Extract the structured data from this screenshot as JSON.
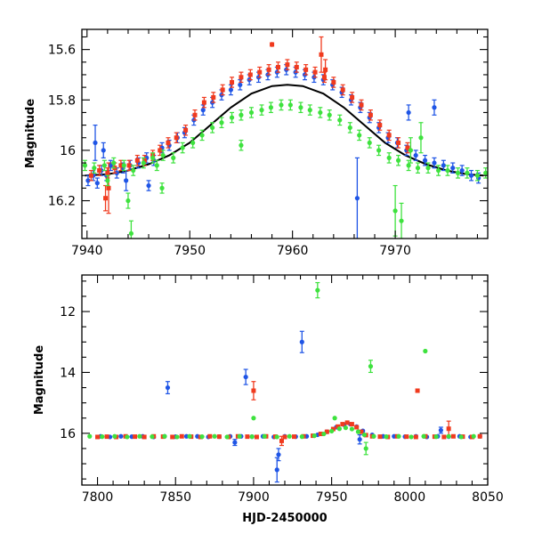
{
  "colors": {
    "blue": "#1f55e6",
    "red": "#f03a1e",
    "green": "#3ee23e",
    "model": "#000000"
  },
  "chart_data": [
    {
      "type": "scatter",
      "panel": "top",
      "xlabel": "",
      "ylabel": "Magnitude",
      "xlim": [
        7939.5,
        7979
      ],
      "ylim": [
        16.35,
        15.52
      ],
      "inverted_y": true,
      "xticks": [
        7940,
        7950,
        7960,
        7970
      ],
      "xtick_labels": [
        "7940",
        "7950",
        "7960",
        "7970"
      ],
      "yticks": [
        15.6,
        15.8,
        16,
        16.2
      ],
      "ytick_labels": [
        "15.6",
        "15.8",
        "16",
        "16.2"
      ],
      "grid": false,
      "legend": "none",
      "model_curve": {
        "color": "#000000",
        "x": [
          7939.8,
          7942,
          7944,
          7946,
          7948,
          7950,
          7952,
          7954,
          7956,
          7958,
          7959.5,
          7961,
          7963,
          7965,
          7967,
          7969,
          7971,
          7973,
          7975,
          7977,
          7978.6
        ],
        "y": [
          16.1,
          16.095,
          16.08,
          16.055,
          16.02,
          15.97,
          15.9,
          15.83,
          15.775,
          15.745,
          15.74,
          15.745,
          15.775,
          15.83,
          15.9,
          15.97,
          16.02,
          16.055,
          16.08,
          16.095,
          16.1
        ]
      },
      "series": [
        {
          "color": "#1f55e6",
          "x": [
            7940.1,
            7940.6,
            7941.0,
            7941.4,
            7941.9,
            7942.3,
            7942.9,
            7943.5,
            7944.2,
            7945.0,
            7945.8,
            7946.5,
            7947.3,
            7948.0,
            7948.8,
            7949.5,
            7950.4,
            7951.3,
            7952.2,
            7953.1,
            7954.0,
            7954.9,
            7955.8,
            7956.7,
            7957.6,
            7958.5,
            7959.4,
            7960.3,
            7961.2,
            7962.1,
            7963.0,
            7963.9,
            7964.8,
            7965.7,
            7966.6,
            7967.5,
            7968.4,
            7969.3,
            7970.2,
            7971.1,
            7972.0,
            7972.9,
            7973.8,
            7974.7,
            7975.6,
            7976.5,
            7977.4,
            7978.1,
            7940.8,
            7941.6,
            7943.8,
            7946.0,
            7966.3,
            7971.3,
            7973.8
          ],
          "y": [
            16.12,
            16.1,
            16.13,
            16.08,
            16.1,
            16.06,
            16.09,
            16.07,
            16.06,
            16.05,
            16.03,
            16.04,
            15.99,
            15.98,
            15.95,
            15.93,
            15.88,
            15.84,
            15.81,
            15.78,
            15.76,
            15.74,
            15.72,
            15.71,
            15.7,
            15.69,
            15.68,
            15.69,
            15.7,
            15.71,
            15.72,
            15.74,
            15.77,
            15.8,
            15.83,
            15.87,
            15.91,
            15.95,
            15.97,
            16.0,
            16.02,
            16.04,
            16.05,
            16.06,
            16.07,
            16.08,
            16.1,
            16.11,
            15.97,
            16.0,
            16.12,
            16.14,
            16.19,
            15.85,
            15.83
          ],
          "err": [
            0.02,
            0.02,
            0.02,
            0.02,
            0.02,
            0.02,
            0.02,
            0.02,
            0.02,
            0.02,
            0.02,
            0.02,
            0.02,
            0.02,
            0.02,
            0.02,
            0.02,
            0.02,
            0.02,
            0.02,
            0.02,
            0.02,
            0.02,
            0.02,
            0.02,
            0.02,
            0.02,
            0.02,
            0.02,
            0.02,
            0.02,
            0.02,
            0.02,
            0.02,
            0.02,
            0.02,
            0.02,
            0.02,
            0.02,
            0.02,
            0.02,
            0.02,
            0.02,
            0.02,
            0.02,
            0.02,
            0.02,
            0.02,
            0.07,
            0.03,
            0.04,
            0.02,
            0.16,
            0.03,
            0.03
          ]
        },
        {
          "color": "#f03a1e",
          "x": [
            7940.4,
            7941.2,
            7942.0,
            7942.7,
            7943.3,
            7944.1,
            7944.9,
            7945.6,
            7946.4,
            7947.1,
            7947.9,
            7948.7,
            7949.6,
            7950.5,
            7951.4,
            7952.3,
            7953.2,
            7954.1,
            7955.0,
            7955.9,
            7956.8,
            7957.7,
            7958.6,
            7959.5,
            7960.4,
            7961.3,
            7962.2,
            7963.1,
            7964.0,
            7964.9,
            7965.8,
            7966.7,
            7967.6,
            7968.5,
            7969.4,
            7970.3,
            7971.2,
            7941.8,
            7942.1,
            7958.0,
            7962.8,
            7963.2
          ],
          "y": [
            16.1,
            16.08,
            16.09,
            16.07,
            16.06,
            16.06,
            16.04,
            16.04,
            16.02,
            16.0,
            15.97,
            15.95,
            15.92,
            15.86,
            15.81,
            15.79,
            15.76,
            15.73,
            15.71,
            15.7,
            15.69,
            15.68,
            15.67,
            15.66,
            15.67,
            15.68,
            15.69,
            15.71,
            15.73,
            15.76,
            15.79,
            15.82,
            15.86,
            15.9,
            15.94,
            15.97,
            15.99,
            16.19,
            16.15,
            15.58,
            15.62,
            15.68
          ],
          "err": [
            0.02,
            0.02,
            0.02,
            0.02,
            0.02,
            0.02,
            0.02,
            0.02,
            0.02,
            0.02,
            0.02,
            0.02,
            0.02,
            0.02,
            0.02,
            0.02,
            0.02,
            0.02,
            0.02,
            0.02,
            0.02,
            0.02,
            0.02,
            0.02,
            0.02,
            0.02,
            0.02,
            0.02,
            0.02,
            0.02,
            0.02,
            0.02,
            0.02,
            0.02,
            0.02,
            0.02,
            0.02,
            0.05,
            0.1,
            0.01,
            0.07,
            0.04
          ]
        },
        {
          "color": "#3ee23e",
          "x": [
            7939.8,
            7940.7,
            7941.7,
            7942.6,
            7943.6,
            7944.5,
            7945.5,
            7946.4,
            7947.4,
            7948.4,
            7949.3,
            7950.3,
            7951.2,
            7952.2,
            7953.1,
            7954.1,
            7955.0,
            7956.0,
            7957.0,
            7957.9,
            7958.9,
            7959.8,
            7960.8,
            7961.7,
            7962.7,
            7963.6,
            7964.6,
            7965.6,
            7966.5,
            7967.5,
            7968.4,
            7969.4,
            7970.3,
            7971.3,
            7972.2,
            7973.2,
            7974.2,
            7975.1,
            7976.1,
            7977.0,
            7978.0,
            7978.8,
            7944.0,
            7944.3,
            7947.3,
            7955.0,
            7970.0,
            7970.6,
            7971.5,
            7972.5,
            7942.0,
            7946.8
          ],
          "y": [
            16.06,
            16.07,
            16.06,
            16.05,
            16.06,
            16.08,
            16.05,
            16.03,
            16.02,
            16.03,
            15.99,
            15.97,
            15.94,
            15.91,
            15.89,
            15.87,
            15.86,
            15.85,
            15.84,
            15.83,
            15.82,
            15.82,
            15.83,
            15.84,
            15.85,
            15.86,
            15.88,
            15.91,
            15.94,
            15.97,
            16.0,
            16.03,
            16.04,
            16.06,
            16.07,
            16.07,
            16.08,
            16.08,
            16.09,
            16.09,
            16.1,
            16.09,
            16.2,
            16.33,
            16.15,
            15.98,
            16.24,
            16.28,
            16.0,
            15.95,
            16.12,
            16.06
          ],
          "err": [
            0.02,
            0.02,
            0.02,
            0.02,
            0.02,
            0.02,
            0.02,
            0.02,
            0.02,
            0.02,
            0.02,
            0.02,
            0.02,
            0.02,
            0.02,
            0.02,
            0.02,
            0.02,
            0.02,
            0.02,
            0.02,
            0.02,
            0.02,
            0.02,
            0.02,
            0.02,
            0.02,
            0.02,
            0.02,
            0.02,
            0.02,
            0.02,
            0.02,
            0.02,
            0.02,
            0.02,
            0.02,
            0.02,
            0.02,
            0.02,
            0.02,
            0.02,
            0.03,
            0.05,
            0.02,
            0.02,
            0.1,
            0.07,
            0.05,
            0.06,
            0.02,
            0.02
          ]
        }
      ]
    },
    {
      "type": "scatter",
      "panel": "bottom",
      "xlabel": "HJD-2450000",
      "ylabel": "Magnitude",
      "xlim": [
        7790,
        8050
      ],
      "ylim": [
        17.7,
        10.8
      ],
      "inverted_y": true,
      "xticks": [
        7800,
        7850,
        7900,
        7950,
        8000,
        8050
      ],
      "xtick_labels": [
        "7800",
        "7850",
        "7900",
        "7950",
        "8000",
        "8050"
      ],
      "yticks": [
        12,
        14,
        16
      ],
      "ytick_labels": [
        "12",
        "14",
        "16"
      ],
      "grid": false,
      "legend": "none",
      "series": [
        {
          "color": "#1f55e6",
          "x": [
            7802,
            7808,
            7815,
            7822,
            7829,
            7836,
            7843,
            7850,
            7857,
            7864,
            7871,
            7878,
            7885,
            7892,
            7899,
            7906,
            7913,
            7920,
            7927,
            7934,
            7941,
            7947,
            7953,
            7958,
            7962,
            7966,
            7970,
            7976,
            7983,
            7990,
            7997,
            8004,
            8011,
            8018,
            8025,
            8032,
            8039,
            8045,
            7845,
            7895,
            7915,
            7916,
            7931,
            7888,
            7968,
            8020
          ],
          "y": [
            16.1,
            16.12,
            16.1,
            16.11,
            16.1,
            16.12,
            16.1,
            16.11,
            16.1,
            16.1,
            16.12,
            16.11,
            16.1,
            16.1,
            16.11,
            16.1,
            16.12,
            16.1,
            16.11,
            16.1,
            16.05,
            15.95,
            15.8,
            15.72,
            15.7,
            15.78,
            15.92,
            16.05,
            16.1,
            16.1,
            16.11,
            16.1,
            16.12,
            16.1,
            16.11,
            16.1,
            16.12,
            16.1,
            14.5,
            14.15,
            17.2,
            16.7,
            13.0,
            16.3,
            16.2,
            15.9
          ],
          "err": [
            0.05,
            0.05,
            0.05,
            0.05,
            0.05,
            0.05,
            0.05,
            0.05,
            0.05,
            0.05,
            0.05,
            0.05,
            0.05,
            0.05,
            0.05,
            0.05,
            0.05,
            0.05,
            0.05,
            0.05,
            0.05,
            0.05,
            0.05,
            0.05,
            0.05,
            0.05,
            0.05,
            0.05,
            0.05,
            0.05,
            0.05,
            0.05,
            0.05,
            0.05,
            0.05,
            0.05,
            0.05,
            0.05,
            0.2,
            0.25,
            0.4,
            0.2,
            0.35,
            0.1,
            0.15,
            0.1
          ]
        },
        {
          "color": "#f03a1e",
          "x": [
            7800,
            7806,
            7812,
            7818,
            7824,
            7830,
            7836,
            7842,
            7848,
            7854,
            7860,
            7866,
            7872,
            7878,
            7884,
            7890,
            7896,
            7902,
            7908,
            7914,
            7920,
            7926,
            7932,
            7938,
            7943,
            7947,
            7951,
            7954,
            7957,
            7960,
            7963,
            7966,
            7969,
            7972,
            7976,
            7981,
            7986,
            7992,
            7998,
            8004,
            8010,
            8016,
            8022,
            8028,
            8034,
            8040,
            8045,
            7900,
            8005,
            8025,
            7918
          ],
          "y": [
            16.12,
            16.11,
            16.12,
            16.1,
            16.11,
            16.12,
            16.1,
            16.11,
            16.12,
            16.1,
            16.11,
            16.12,
            16.1,
            16.11,
            16.12,
            16.1,
            16.11,
            16.12,
            16.1,
            16.11,
            16.12,
            16.11,
            16.1,
            16.08,
            16.02,
            15.95,
            15.86,
            15.78,
            15.7,
            15.65,
            15.7,
            15.8,
            15.95,
            16.06,
            16.1,
            16.11,
            16.12,
            16.1,
            16.11,
            16.12,
            16.1,
            16.11,
            16.12,
            16.1,
            16.11,
            16.12,
            16.1,
            14.6,
            14.6,
            15.85,
            16.25
          ],
          "err": [
            0.05,
            0.05,
            0.05,
            0.05,
            0.05,
            0.05,
            0.05,
            0.05,
            0.05,
            0.05,
            0.05,
            0.05,
            0.05,
            0.05,
            0.05,
            0.05,
            0.05,
            0.05,
            0.05,
            0.05,
            0.05,
            0.05,
            0.05,
            0.05,
            0.05,
            0.05,
            0.05,
            0.05,
            0.05,
            0.05,
            0.05,
            0.05,
            0.05,
            0.05,
            0.05,
            0.05,
            0.05,
            0.05,
            0.05,
            0.05,
            0.05,
            0.05,
            0.05,
            0.05,
            0.05,
            0.05,
            0.05,
            0.3,
            0.02,
            0.25,
            0.15
          ]
        },
        {
          "color": "#3ee23e",
          "x": [
            7795,
            7803,
            7811,
            7819,
            7827,
            7835,
            7843,
            7851,
            7859,
            7867,
            7875,
            7883,
            7891,
            7899,
            7907,
            7915,
            7923,
            7931,
            7939,
            7945,
            7950,
            7955,
            7959,
            7963,
            7967,
            7971,
            7977,
            7985,
            7993,
            8001,
            8009,
            8017,
            8025,
            8033,
            8041,
            7941,
            7900,
            7975,
            7972,
            8010,
            7952
          ],
          "y": [
            16.1,
            16.11,
            16.1,
            16.12,
            16.1,
            16.11,
            16.1,
            16.12,
            16.1,
            16.11,
            16.1,
            16.12,
            16.1,
            16.11,
            16.1,
            16.12,
            16.1,
            16.11,
            16.08,
            16.02,
            15.93,
            15.85,
            15.82,
            15.86,
            15.95,
            16.05,
            16.1,
            16.11,
            16.1,
            16.12,
            16.1,
            16.11,
            16.1,
            16.12,
            16.1,
            11.3,
            15.5,
            13.8,
            16.5,
            13.3,
            15.5
          ],
          "err": [
            0.05,
            0.05,
            0.05,
            0.05,
            0.05,
            0.05,
            0.05,
            0.05,
            0.05,
            0.05,
            0.05,
            0.05,
            0.05,
            0.05,
            0.05,
            0.05,
            0.05,
            0.05,
            0.05,
            0.05,
            0.05,
            0.05,
            0.05,
            0.05,
            0.05,
            0.05,
            0.05,
            0.05,
            0.05,
            0.05,
            0.05,
            0.05,
            0.05,
            0.05,
            0.05,
            0.25,
            0.02,
            0.2,
            0.2,
            0.02,
            0.02
          ]
        }
      ]
    }
  ]
}
